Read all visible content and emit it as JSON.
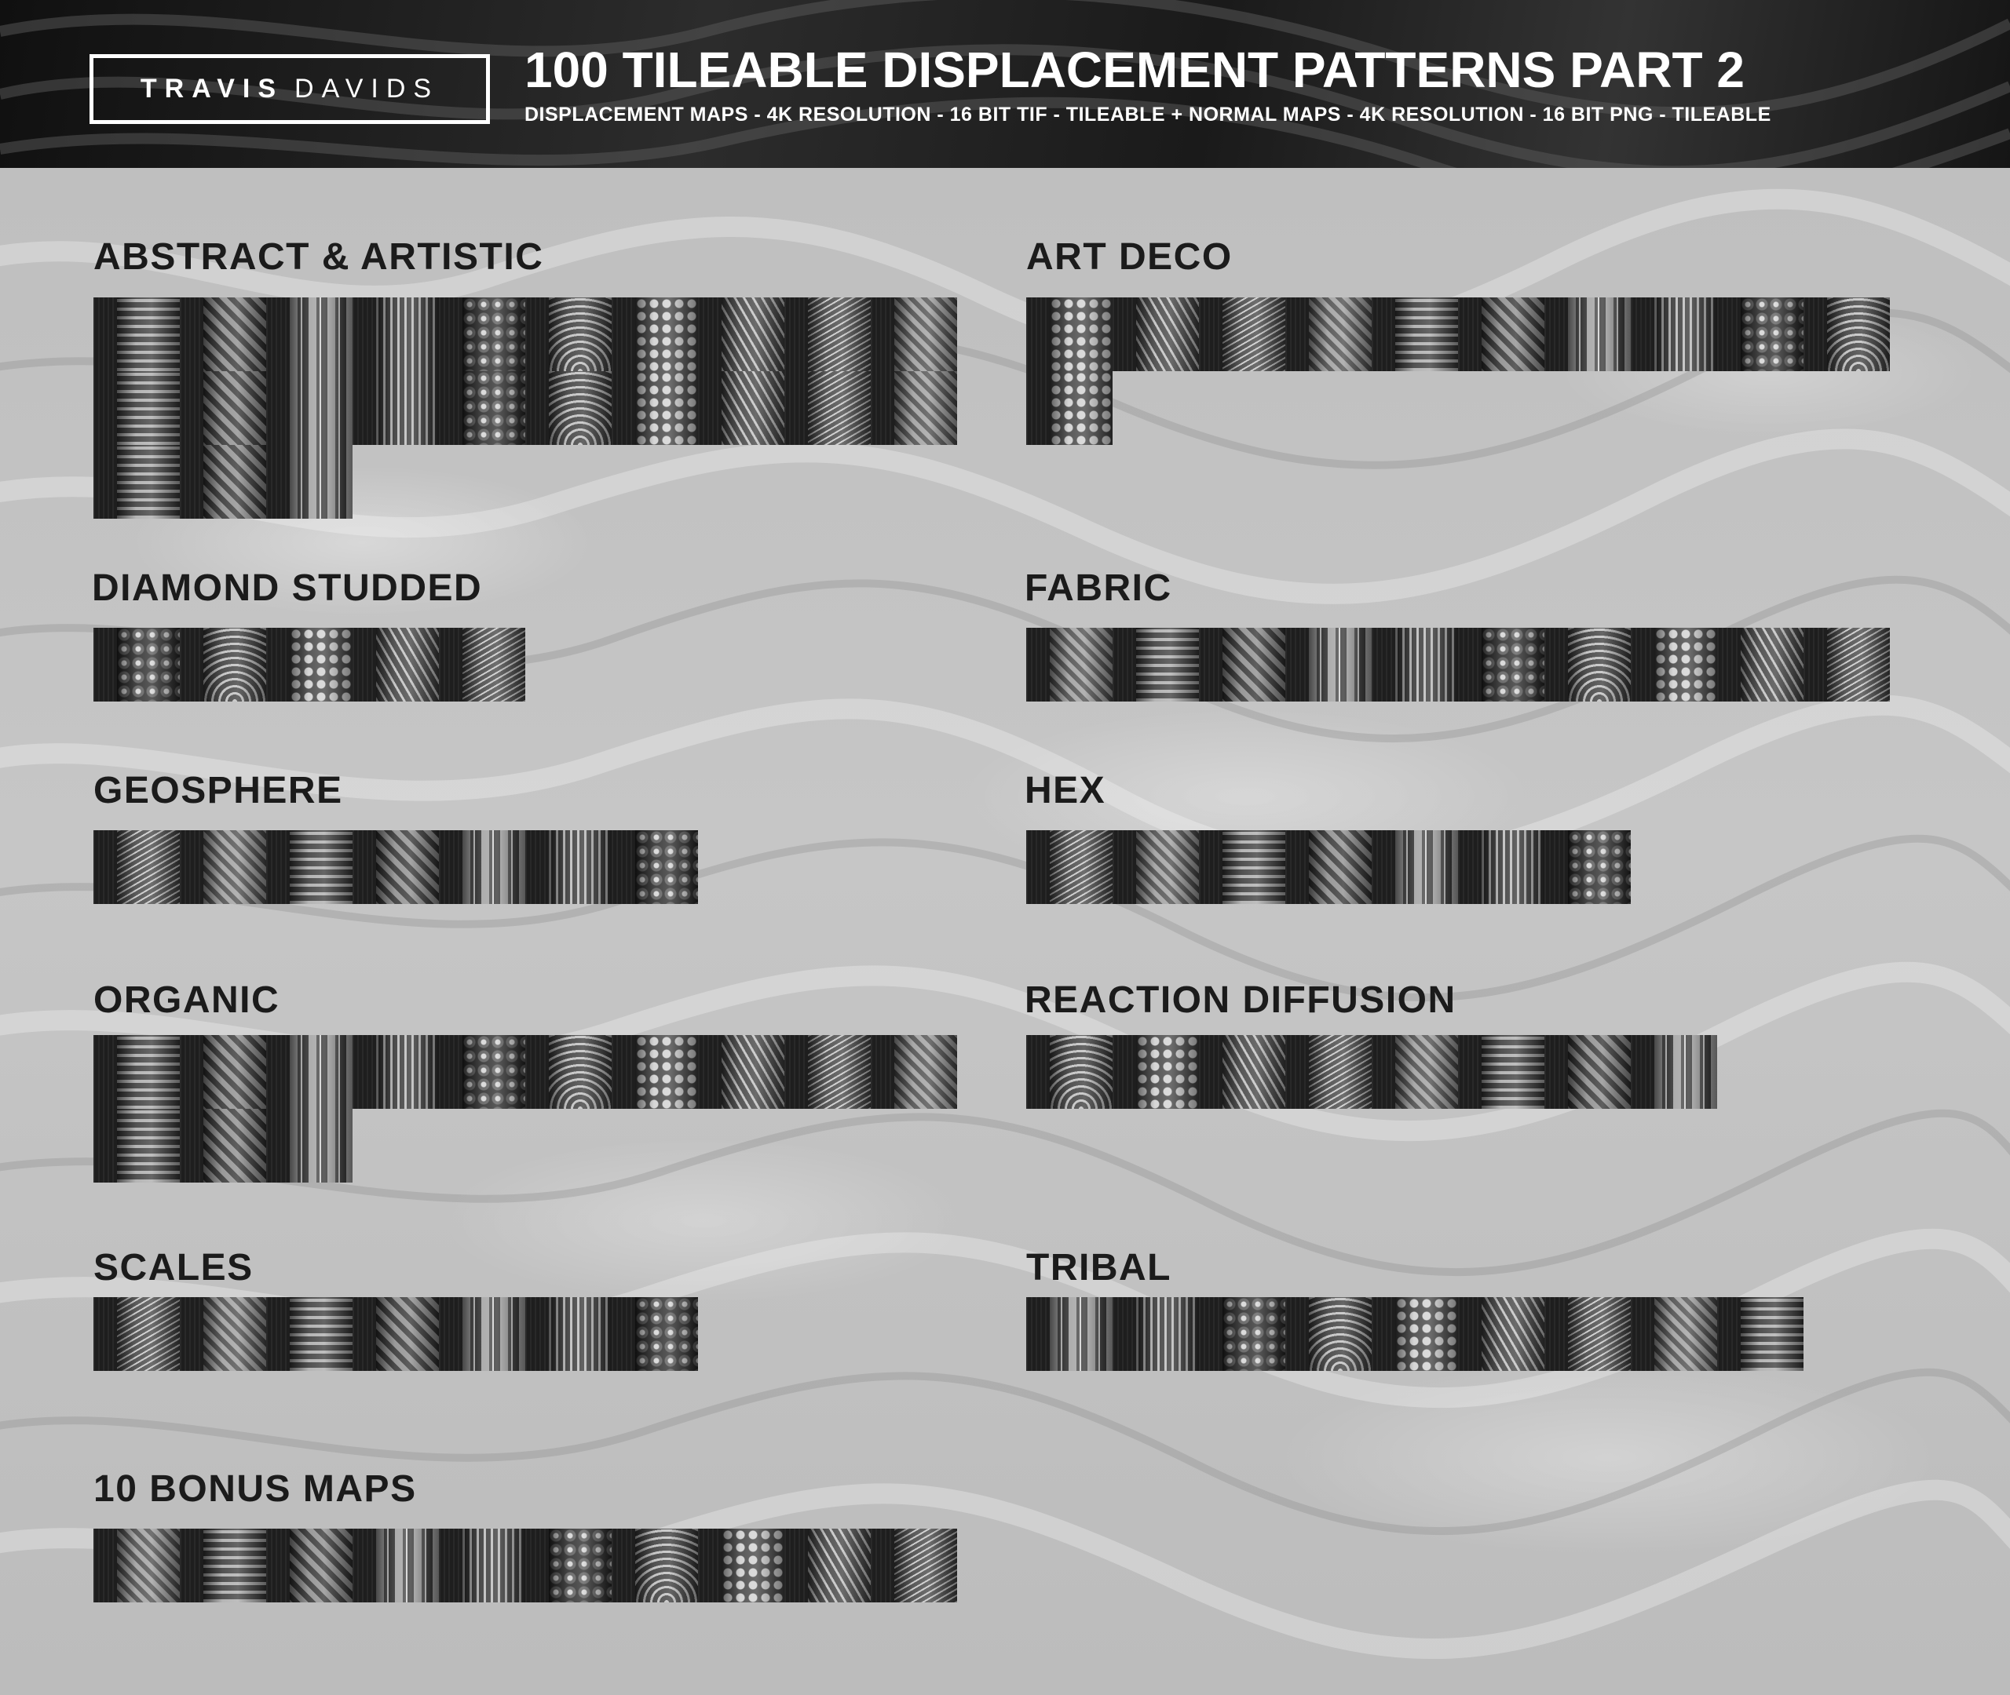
{
  "header": {
    "logo_bold": "TRAVIS",
    "logo_light": "DAVIDS",
    "title": "100 TILEABLE DISPLACEMENT PATTERNS PART 2",
    "subtitle": "DISPLACEMENT MAPS - 4K RESOLUTION - 16 BIT TIF - TILEABLE + NORMAL MAPS - 4K RESOLUTION - 16 BIT PNG - TILEABLE"
  },
  "categories": [
    {
      "label": "ABSTRACT & ARTISTIC",
      "tiles": 23
    },
    {
      "label": "ART DECO",
      "tiles": 11
    },
    {
      "label": "DIAMOND STUDDED",
      "tiles": 5
    },
    {
      "label": "FABRIC",
      "tiles": 10
    },
    {
      "label": "GEOSPHERE",
      "tiles": 7
    },
    {
      "label": "HEX",
      "tiles": 7
    },
    {
      "label": "ORGANIC",
      "tiles": 13
    },
    {
      "label": "REACTION DIFFUSION",
      "tiles": 8
    },
    {
      "label": "SCALES",
      "tiles": 7
    },
    {
      "label": "TRIBAL",
      "tiles": 9
    },
    {
      "label": "10 BONUS MAPS",
      "tiles": 10
    }
  ],
  "colors": {
    "header_background": "#1a1a1a",
    "page_background": "#c2c2c2",
    "label_text": "#1b1b1b",
    "header_text": "#ffffff"
  }
}
